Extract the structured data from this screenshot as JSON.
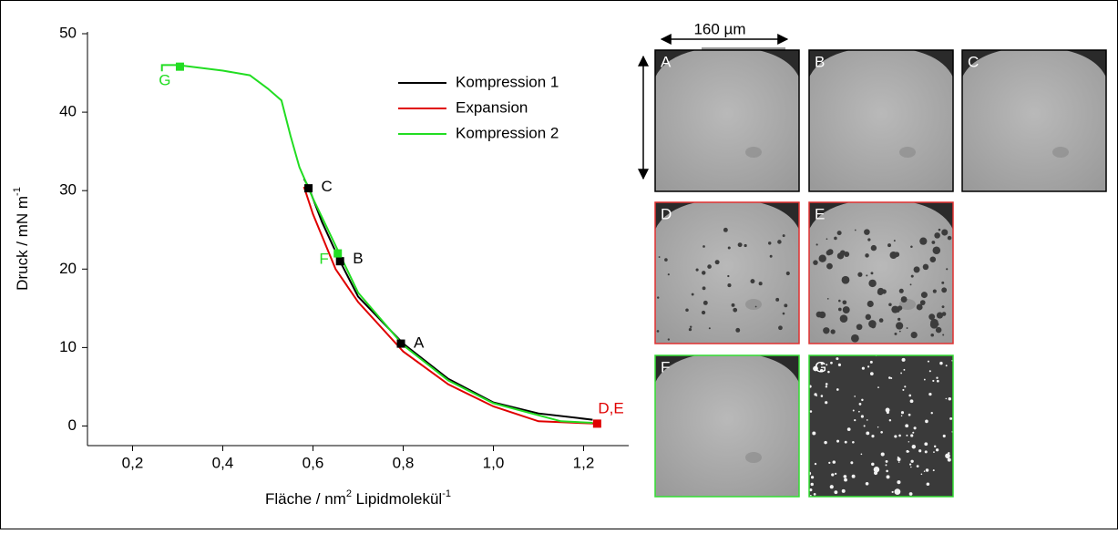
{
  "chart_data": {
    "type": "line",
    "x_label": {
      "text": "Fläche / nm",
      "sup1": "2",
      "text2": " Lipidmolekül",
      "sup2": "-1"
    },
    "y_label": {
      "text": "Druck / mN m",
      "sup": "-1"
    },
    "xlim": [
      0.1,
      1.3
    ],
    "ylim": [
      -2.5,
      50
    ],
    "xticks": [
      {
        "value": 0.2,
        "label": "0,2"
      },
      {
        "value": 0.4,
        "label": "0,4"
      },
      {
        "value": 0.6,
        "label": "0,6"
      },
      {
        "value": 0.8,
        "label": "0,8"
      },
      {
        "value": 1.0,
        "label": "1,0"
      },
      {
        "value": 1.2,
        "label": "1,2"
      }
    ],
    "yticks": [
      0,
      10,
      20,
      30,
      40,
      50
    ],
    "series": [
      {
        "name": "Kompression 1",
        "color": "#000000",
        "x": [
          1.22,
          1.1,
          1.0,
          0.9,
          0.8,
          0.7,
          0.66,
          0.62,
          0.59,
          0.58
        ],
        "values": [
          0.8,
          1.6,
          3.0,
          6.0,
          10.5,
          16.5,
          21,
          26,
          30.5,
          31.5
        ]
      },
      {
        "name": "Expansion",
        "color": "#e00000",
        "x": [
          1.23,
          1.1,
          1.0,
          0.9,
          0.8,
          0.7,
          0.65,
          0.6,
          0.58
        ],
        "values": [
          0.3,
          0.6,
          2.5,
          5.3,
          9.5,
          15.8,
          20,
          27,
          30.5
        ]
      },
      {
        "name": "Kompression 2",
        "color": "#22dd22",
        "x": [
          1.22,
          1.15,
          1.0,
          0.9,
          0.8,
          0.7,
          0.66,
          0.6,
          0.57,
          0.55,
          0.53,
          0.52,
          0.5,
          0.46,
          0.4,
          0.3,
          0.265,
          0.265
        ],
        "values": [
          0.4,
          0.6,
          2.9,
          5.8,
          10.3,
          17,
          21.8,
          29,
          33,
          37,
          41.5,
          42,
          43,
          44.7,
          45.3,
          46,
          46,
          45.2
        ]
      }
    ],
    "points": [
      {
        "label": "A",
        "x": 0.795,
        "y": 10.5,
        "color": "#000000"
      },
      {
        "label": "B",
        "x": 0.66,
        "y": 21,
        "color": "#000000"
      },
      {
        "label": "C",
        "x": 0.59,
        "y": 30.3,
        "color": "#000000"
      },
      {
        "label": "F",
        "x": 0.655,
        "y": 22,
        "color": "#22dd22"
      },
      {
        "label": "G",
        "x": 0.305,
        "y": 45.8,
        "color": "#22dd22"
      },
      {
        "label": "D,E",
        "x": 1.23,
        "y": 0.3,
        "color": "#e00000"
      }
    ],
    "scale_bar": "160 µm",
    "images": [
      {
        "label": "A",
        "border": "#000000"
      },
      {
        "label": "B",
        "border": "#000000"
      },
      {
        "label": "C",
        "border": "#000000"
      },
      {
        "label": "D",
        "border": "#e03030"
      },
      {
        "label": "E",
        "border": "#e03030"
      },
      {
        "label": "F",
        "border": "#33dd33"
      },
      {
        "label": "G",
        "border": "#33dd33"
      }
    ]
  }
}
